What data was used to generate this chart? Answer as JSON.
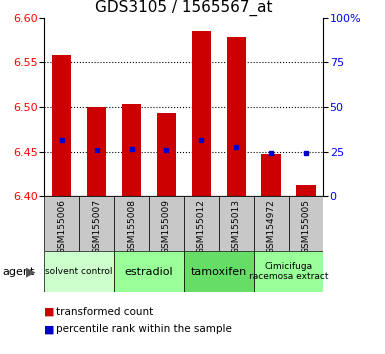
{
  "title": "GDS3105 / 1565567_at",
  "samples": [
    "GSM155006",
    "GSM155007",
    "GSM155008",
    "GSM155009",
    "GSM155012",
    "GSM155013",
    "GSM154972",
    "GSM155005"
  ],
  "bar_values": [
    6.558,
    6.5,
    6.504,
    6.493,
    6.585,
    6.578,
    6.447,
    6.413
  ],
  "bar_base": 6.4,
  "percentile_values": [
    6.463,
    6.452,
    6.453,
    6.452,
    6.463,
    6.455,
    6.449,
    6.449
  ],
  "agents": [
    {
      "label": "solvent control",
      "start": 0,
      "end": 2,
      "color": "#ccffcc",
      "fontsize": 6.5
    },
    {
      "label": "estradiol",
      "start": 2,
      "end": 4,
      "color": "#99ff99",
      "fontsize": 8
    },
    {
      "label": "tamoxifen",
      "start": 4,
      "end": 6,
      "color": "#66dd66",
      "fontsize": 8
    },
    {
      "label": "Cimicifuga\nracemosa extract",
      "start": 6,
      "end": 8,
      "color": "#99ff99",
      "fontsize": 6.5
    }
  ],
  "ylim": [
    6.4,
    6.6
  ],
  "yticks": [
    6.4,
    6.45,
    6.5,
    6.55,
    6.6
  ],
  "right_ytick_labels": [
    "0",
    "25",
    "50",
    "75",
    "100%"
  ],
  "bar_color": "#cc0000",
  "percentile_color": "#0000cc",
  "bar_width": 0.55,
  "sample_bg": "#c8c8c8",
  "title_fontsize": 11,
  "tick_fontsize": 8,
  "sample_fontsize": 6.5,
  "agent_fontsize": 8
}
